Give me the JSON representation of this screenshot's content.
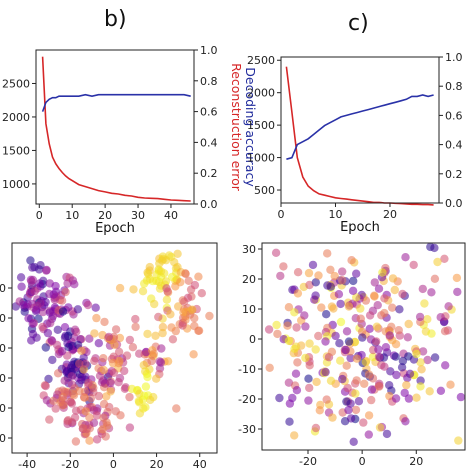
{
  "panel_labels": {
    "b": "b)",
    "c": "c)"
  },
  "colors": {
    "reconstruction": "#d62728",
    "decoding": "#2a32a8"
  },
  "chart_data": [
    {
      "id": "b-line",
      "type": "line",
      "panel": "b)",
      "xlabel": "Epoch",
      "ylabel_left": "",
      "ylabel_right": [
        "Reconstruction error",
        "Decoding accuracy"
      ],
      "xlim": [
        -1,
        47
      ],
      "ylim_left": [
        700,
        3000
      ],
      "ylim_right": [
        0,
        1
      ],
      "xticks": [
        0,
        10,
        20,
        30,
        40
      ],
      "yticks_left": [
        1000,
        1500,
        2000,
        2500
      ],
      "yticks_right": [
        0.0,
        0.2,
        0.4,
        0.6,
        0.8,
        1.0
      ],
      "series": [
        {
          "axis": "left",
          "color": "#d62728",
          "x": [
            1,
            2,
            3,
            4,
            5,
            6,
            7,
            8,
            9,
            10,
            12,
            14,
            16,
            18,
            20,
            22,
            24,
            26,
            28,
            30,
            32,
            34,
            36,
            38,
            40,
            42,
            44,
            46
          ],
          "values": [
            2900,
            1900,
            1600,
            1400,
            1300,
            1230,
            1170,
            1120,
            1080,
            1050,
            990,
            960,
            930,
            900,
            880,
            860,
            850,
            830,
            820,
            800,
            790,
            785,
            780,
            770,
            760,
            755,
            750,
            745
          ]
        },
        {
          "axis": "right",
          "color": "#2a32a8",
          "x": [
            1,
            2,
            3,
            4,
            5,
            6,
            8,
            10,
            12,
            14,
            16,
            18,
            20,
            22,
            24,
            26,
            28,
            30,
            32,
            34,
            36,
            38,
            40,
            42,
            44,
            46
          ],
          "values": [
            0.6,
            0.66,
            0.68,
            0.69,
            0.69,
            0.7,
            0.7,
            0.7,
            0.7,
            0.71,
            0.7,
            0.71,
            0.71,
            0.71,
            0.71,
            0.71,
            0.71,
            0.71,
            0.71,
            0.71,
            0.71,
            0.71,
            0.71,
            0.71,
            0.71,
            0.7
          ]
        }
      ]
    },
    {
      "id": "c-line",
      "type": "line",
      "panel": "c)",
      "xlabel": "Epoch",
      "ylabel_left": "",
      "ylabel_right": [
        "Reconstruction error",
        "Decoding accuracy"
      ],
      "xlim": [
        0,
        29
      ],
      "ylim_left": [
        300,
        2550
      ],
      "ylim_right": [
        0,
        1
      ],
      "xticks": [
        0,
        10,
        20
      ],
      "yticks_left": [
        500,
        1000,
        1500,
        2000,
        2500
      ],
      "yticks_right": [
        0.0,
        0.2,
        0.4,
        0.6,
        0.8,
        1.0
      ],
      "series": [
        {
          "axis": "left",
          "color": "#d62728",
          "x": [
            1,
            2,
            3,
            4,
            5,
            6,
            7,
            8,
            9,
            10,
            11,
            12,
            13,
            14,
            15,
            16,
            17,
            18,
            19,
            20,
            21,
            22,
            23,
            24,
            25,
            26,
            27,
            28
          ],
          "values": [
            2400,
            1700,
            1000,
            700,
            560,
            490,
            440,
            420,
            400,
            380,
            370,
            360,
            350,
            340,
            330,
            320,
            310,
            310,
            300,
            300,
            295,
            290,
            285,
            280,
            280,
            275,
            275,
            270
          ]
        },
        {
          "axis": "right",
          "color": "#2a32a8",
          "x": [
            1,
            2,
            3,
            4,
            5,
            6,
            7,
            8,
            9,
            10,
            11,
            12,
            13,
            14,
            15,
            16,
            17,
            18,
            19,
            20,
            21,
            22,
            23,
            24,
            25,
            26,
            27,
            28
          ],
          "values": [
            0.3,
            0.31,
            0.4,
            0.42,
            0.44,
            0.47,
            0.5,
            0.53,
            0.55,
            0.57,
            0.59,
            0.6,
            0.61,
            0.62,
            0.63,
            0.64,
            0.65,
            0.66,
            0.67,
            0.68,
            0.69,
            0.7,
            0.71,
            0.73,
            0.73,
            0.74,
            0.73,
            0.74
          ]
        }
      ]
    },
    {
      "id": "b-scatter",
      "type": "scatter",
      "panel": "b)",
      "xlim": [
        -47,
        48
      ],
      "ylim": [
        -35,
        35
      ],
      "xticks": [
        -40,
        -20,
        0,
        20,
        40
      ],
      "yticks": [
        -30,
        -20,
        -10,
        0,
        10,
        20
      ],
      "colormap": "plasma",
      "clusters": [
        {
          "cx": -37,
          "cy": 17,
          "sx": 4,
          "sy": 6,
          "n": 55,
          "c_lo": 0.0,
          "c_hi": 0.45
        },
        {
          "cx": -25,
          "cy": 14,
          "sx": 5,
          "sy": 5,
          "n": 40,
          "c_lo": 0.2,
          "c_hi": 0.6
        },
        {
          "cx": -20,
          "cy": 0,
          "sx": 5,
          "sy": 7,
          "n": 50,
          "c_lo": 0.0,
          "c_hi": 0.5
        },
        {
          "cx": -16,
          "cy": -8,
          "sx": 6,
          "sy": 4,
          "n": 30,
          "c_lo": 0.0,
          "c_hi": 0.2
        },
        {
          "cx": -3,
          "cy": -5,
          "sx": 6,
          "sy": 9,
          "n": 70,
          "c_lo": 0.3,
          "c_hi": 0.85
        },
        {
          "cx": -23,
          "cy": -18,
          "sx": 7,
          "sy": 5,
          "n": 45,
          "c_lo": 0.3,
          "c_hi": 0.75
        },
        {
          "cx": -12,
          "cy": -25,
          "sx": 6,
          "sy": 4,
          "n": 40,
          "c_lo": 0.35,
          "c_hi": 0.75
        },
        {
          "cx": 22,
          "cy": 24,
          "sx": 5,
          "sy": 5,
          "n": 45,
          "c_lo": 0.85,
          "c_hi": 1.0
        },
        {
          "cx": 32,
          "cy": 12,
          "sx": 5,
          "sy": 8,
          "n": 50,
          "c_lo": 0.5,
          "c_hi": 0.85
        },
        {
          "cx": 17,
          "cy": -3,
          "sx": 4,
          "sy": 6,
          "n": 25,
          "c_lo": 0.3,
          "c_hi": 0.9
        },
        {
          "cx": 14,
          "cy": -18,
          "sx": 3,
          "sy": 4,
          "n": 18,
          "c_lo": 0.9,
          "c_hi": 1.0
        }
      ]
    },
    {
      "id": "c-scatter",
      "type": "scatter",
      "panel": "c)",
      "xlim": [
        -37,
        38
      ],
      "ylim": [
        -37,
        32
      ],
      "xticks": [
        -20,
        0,
        20
      ],
      "yticks": [
        -30,
        -20,
        -10,
        0,
        10,
        20,
        30
      ],
      "colormap": "plasma",
      "clusters": [
        {
          "cx": 0,
          "cy": -2,
          "sx": 19,
          "sy": 16,
          "n": 330,
          "c_lo": 0.0,
          "c_hi": 1.0
        }
      ]
    }
  ]
}
